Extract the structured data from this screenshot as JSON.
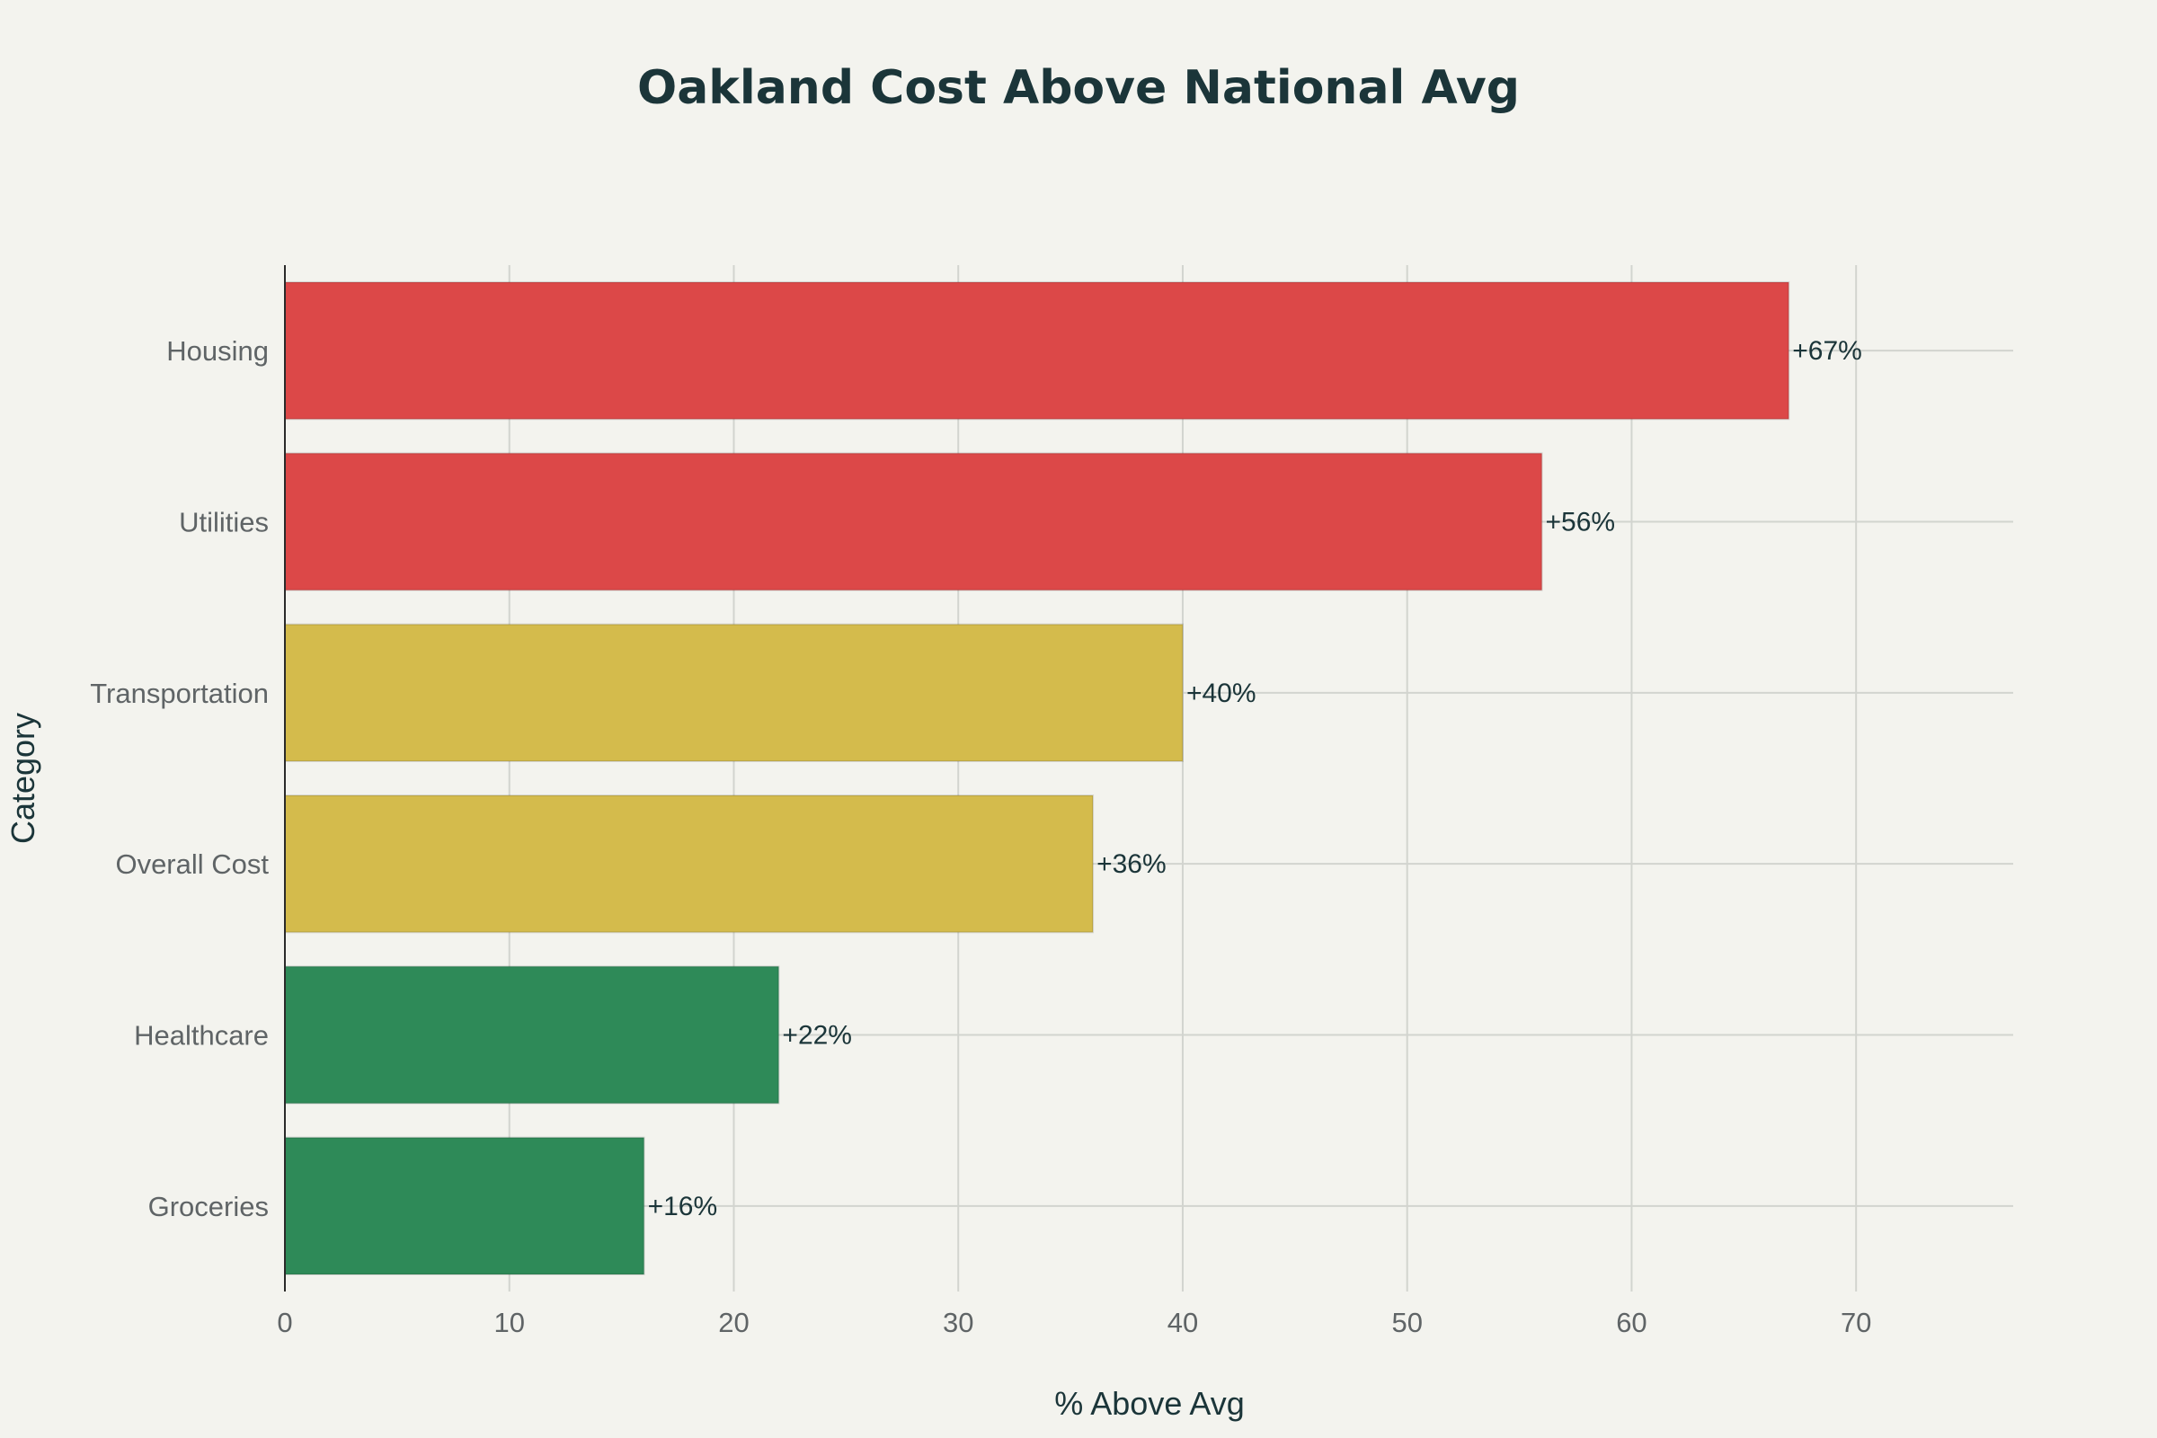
{
  "chart_data": {
    "type": "bar",
    "orientation": "horizontal",
    "title": "Oakland Cost Above National Avg",
    "xlabel": "% Above Avg",
    "ylabel": "Category",
    "xlim": [
      0,
      77
    ],
    "xticks": [
      0,
      10,
      20,
      30,
      40,
      50,
      60,
      70
    ],
    "grid": true,
    "categories": [
      "Housing",
      "Utilities",
      "Transportation",
      "Overall Cost",
      "Healthcare",
      "Groceries"
    ],
    "values": [
      67,
      56,
      40,
      36,
      22,
      16
    ],
    "labels": [
      "+67%",
      "+56%",
      "+40%",
      "+36%",
      "+22%",
      "+16%"
    ],
    "colors": [
      "#dc4848",
      "#dc4848",
      "#d4bb4c",
      "#d4bb4c",
      "#2e8a58",
      "#2e8a58"
    ]
  }
}
